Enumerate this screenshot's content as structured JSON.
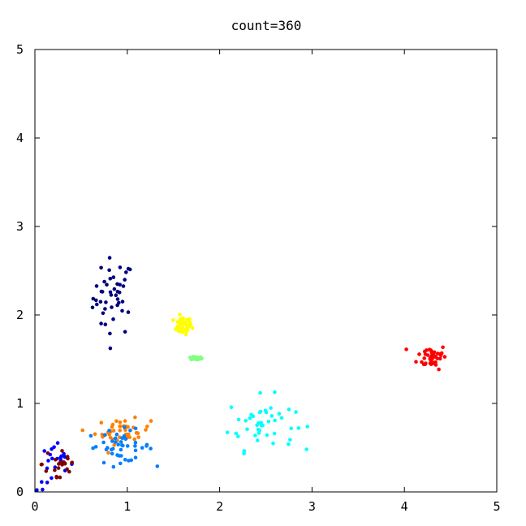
{
  "chart_data": {
    "type": "scatter",
    "title": "count=360",
    "xlabel": "",
    "ylabel": "",
    "xlim": [
      0,
      5
    ],
    "ylim": [
      0,
      5
    ],
    "xticks": [
      "0",
      "1",
      "2",
      "3",
      "4",
      "5"
    ],
    "yticks": [
      "0",
      "1",
      "2",
      "3",
      "4",
      "5"
    ],
    "grid": false,
    "legend": "none",
    "clusters": [
      {
        "color": "#00007f",
        "center": [
          0.85,
          2.2
        ],
        "spread": [
          0.11,
          0.22
        ],
        "n": 45
      },
      {
        "color": "#ffff00",
        "center": [
          1.6,
          1.88
        ],
        "spread": [
          0.05,
          0.05
        ],
        "n": 45
      },
      {
        "color": "#80ff80",
        "center": [
          1.75,
          1.51
        ],
        "spread": [
          0.03,
          0.008
        ],
        "n": 45
      },
      {
        "color": "#ff0000",
        "center": [
          4.3,
          1.53
        ],
        "spread": [
          0.08,
          0.07
        ],
        "n": 45
      },
      {
        "color": "#00ffff",
        "center": [
          2.45,
          0.78
        ],
        "spread": [
          0.18,
          0.15
        ],
        "n": 45
      },
      {
        "color": "#ff7f00",
        "center": [
          0.95,
          0.68
        ],
        "spread": [
          0.15,
          0.07
        ],
        "n": 45
      },
      {
        "color": "#007fff",
        "center": [
          0.92,
          0.52
        ],
        "spread": [
          0.18,
          0.09
        ],
        "n": 45
      },
      {
        "color": "#0000ff",
        "center": [
          0.22,
          0.28
        ],
        "spread": [
          0.1,
          0.14
        ],
        "n": 22
      },
      {
        "color": "#7f0000",
        "center": [
          0.28,
          0.32
        ],
        "spread": [
          0.1,
          0.14
        ],
        "n": 23
      }
    ]
  }
}
